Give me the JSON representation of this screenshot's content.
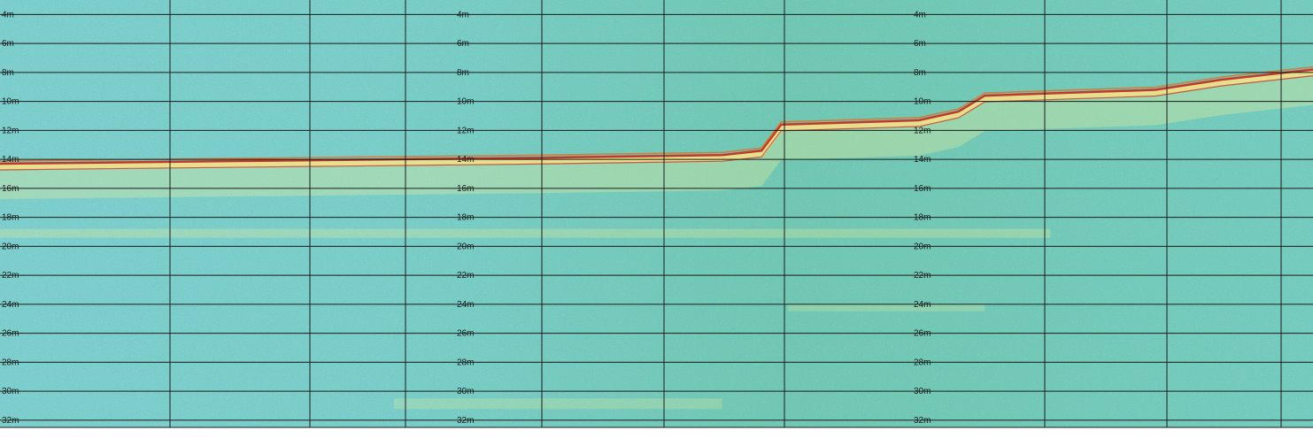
{
  "chart_data": {
    "type": "heatmap",
    "title": "",
    "xlabel": "",
    "ylabel": "",
    "depth_unit": "m",
    "ylim": [
      3,
      32.5
    ],
    "depth_ticks": [
      4,
      6,
      8,
      10,
      12,
      14,
      16,
      18,
      20,
      22,
      24,
      26,
      28,
      30,
      32
    ],
    "depth_tick_labels": [
      "4m",
      "6m",
      "8m",
      "10m",
      "12m",
      "14m",
      "16m",
      "18m",
      "20m",
      "22m",
      "24m",
      "26m",
      "28m",
      "30m",
      "32m"
    ],
    "label_columns": 4,
    "bottom_profile": [
      {
        "ping": 0.0,
        "depth": 14.3
      },
      {
        "ping": 0.2,
        "depth": 14.1
      },
      {
        "ping": 0.4,
        "depth": 13.9
      },
      {
        "ping": 0.55,
        "depth": 13.7
      },
      {
        "ping": 0.58,
        "depth": 13.4
      },
      {
        "ping": 0.595,
        "depth": 11.6
      },
      {
        "ping": 0.7,
        "depth": 11.3
      },
      {
        "ping": 0.73,
        "depth": 10.7
      },
      {
        "ping": 0.75,
        "depth": 9.6
      },
      {
        "ping": 0.88,
        "depth": 9.2
      },
      {
        "ping": 0.93,
        "depth": 8.5
      },
      {
        "ping": 1.0,
        "depth": 7.8
      }
    ],
    "colors": {
      "background_low": "#7fd6cf",
      "background_mid": "#5ec0a8",
      "speckle": "#2f7fb8",
      "weak_return": "#e8ef9a",
      "strong_return": "#c0392b",
      "bottom_core": "#f0e08a"
    }
  }
}
